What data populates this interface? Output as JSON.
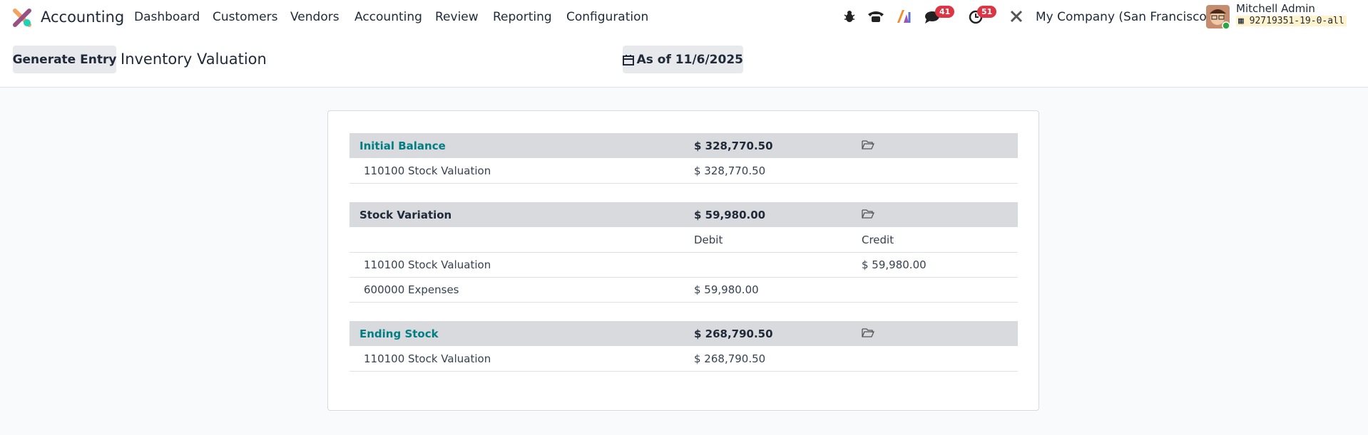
{
  "navbar": {
    "app": "Accounting",
    "menu": [
      "Dashboard",
      "Customers",
      "Vendors",
      "Accounting",
      "Review",
      "Reporting",
      "Configuration"
    ],
    "chat_count": "41",
    "activity_count": "51",
    "company": "My Company (San Francisco)",
    "user": "Mitchell Admin",
    "database": "92719351-19-0-all"
  },
  "control_panel": {
    "button": "Generate Entry",
    "title": "Inventory Valuation",
    "date_filter": "As of 11/6/2025"
  },
  "report": {
    "sections": [
      {
        "label": "Initial Balance",
        "total": "$ 328,770.50",
        "lines": [
          {
            "account": "110100 Stock Valuation",
            "debit": "$ 328,770.50"
          }
        ]
      },
      {
        "label": "Stock Variation",
        "total": "$ 59,980.00",
        "columns": [
          "Debit",
          "Credit"
        ],
        "lines": [
          {
            "account": "110100 Stock Valuation",
            "credit": "$ 59,980.00"
          },
          {
            "account": "600000 Expenses",
            "debit": "$ 59,980.00"
          }
        ]
      },
      {
        "label": "Ending Stock",
        "total": "$ 268,790.50",
        "lines": [
          {
            "account": "110100 Stock Valuation",
            "debit": "$ 268,790.50"
          }
        ]
      }
    ]
  }
}
